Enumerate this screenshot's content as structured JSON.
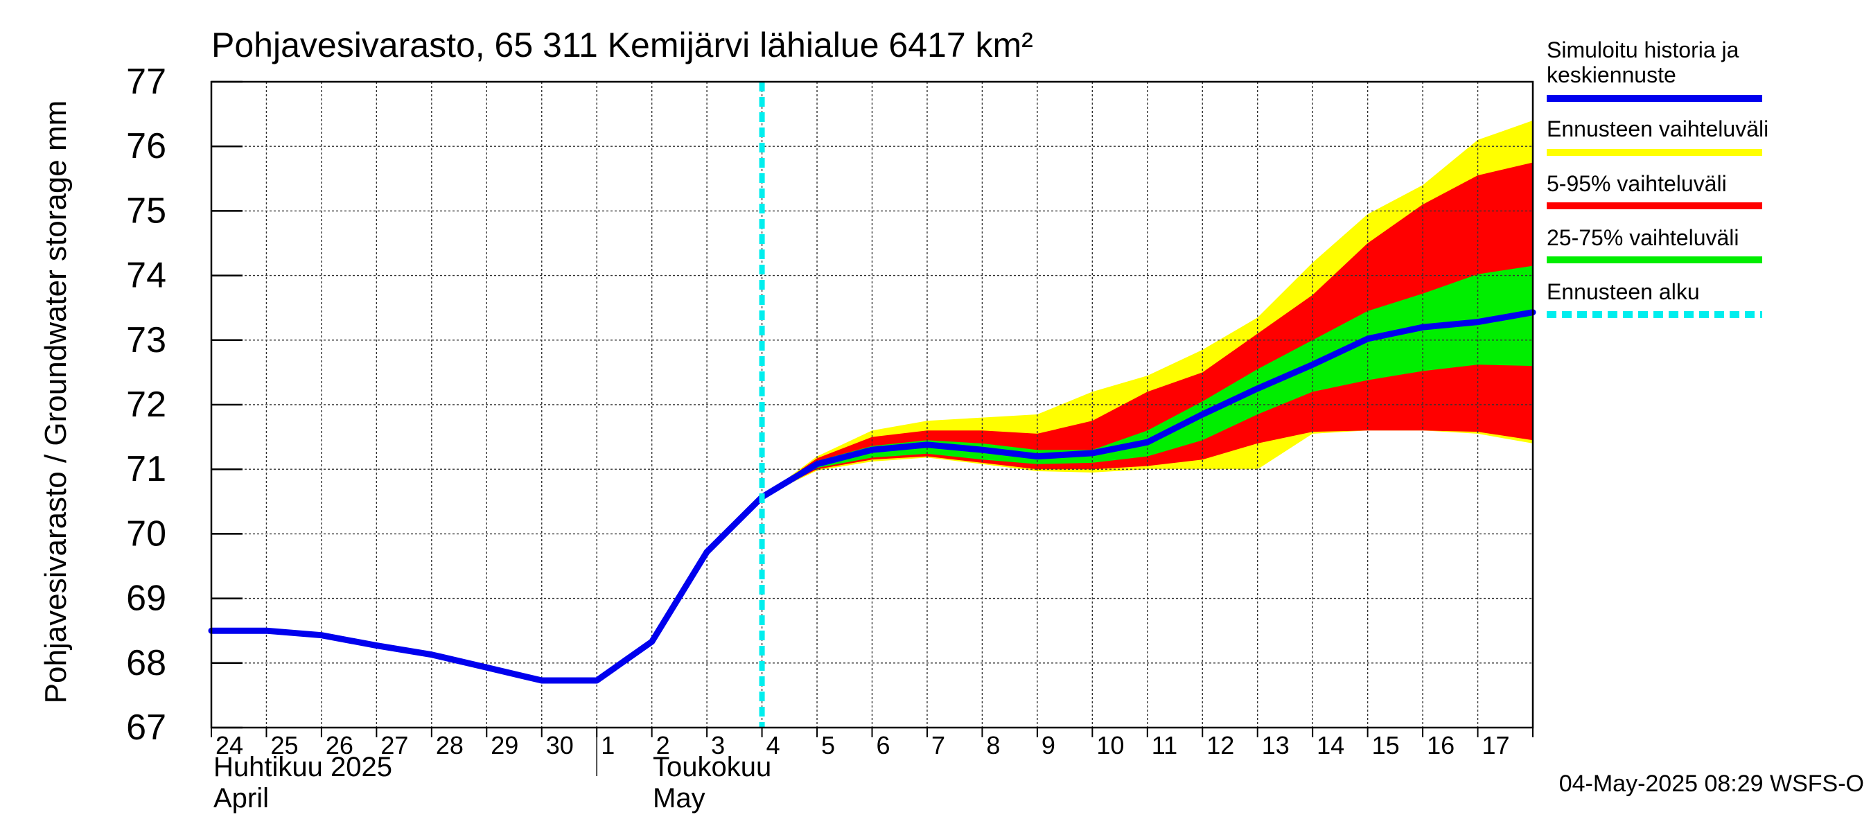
{
  "chart_data": {
    "type": "area",
    "title": "Pohjavesivarasto, 65 311 Kemijärvi lähialue 6417 km²",
    "ylabel": "Pohjavesivarasto / Groundwater storage   mm",
    "ylim": [
      67,
      77
    ],
    "yticks": [
      "67",
      "68",
      "69",
      "70",
      "71",
      "72",
      "73",
      "74",
      "75",
      "76",
      "77"
    ],
    "xlim": [
      0,
      24
    ],
    "xtick_labels": [
      "24",
      "25",
      "26",
      "27",
      "28",
      "29",
      "30",
      "1",
      "2",
      "3",
      "4",
      "5",
      "6",
      "7",
      "8",
      "9",
      "10",
      "11",
      "12",
      "13",
      "14",
      "15",
      "16",
      "17"
    ],
    "month_labels": [
      {
        "fi": "Huhtikuu  2025",
        "en": "April"
      },
      {
        "fi": "Toukokuu",
        "en": "May"
      }
    ],
    "grid": true,
    "footer": "04-May-2025 08:29 WSFS-O",
    "forecast_start_x": 10,
    "legend": {
      "placement": "right",
      "entries": [
        {
          "label_lines": [
            "Simuloitu historia ja",
            "keskiennuste"
          ],
          "color": "#0000ee",
          "style": "solid"
        },
        {
          "label_lines": [
            "Ennusteen vaihteluväli"
          ],
          "color": "#ffff00",
          "style": "solid"
        },
        {
          "label_lines": [
            "5-95% vaihteluväli"
          ],
          "color": "#ff0000",
          "style": "solid"
        },
        {
          "label_lines": [
            "25-75% vaihteluväli"
          ],
          "color": "#00ee00",
          "style": "solid"
        },
        {
          "label_lines": [
            "Ennusteen alku"
          ],
          "color": "#00eeee",
          "style": "dashed"
        }
      ]
    },
    "band_x": [
      10,
      11,
      12,
      13,
      14,
      15,
      16,
      17,
      18,
      19,
      20,
      21,
      22,
      23,
      24
    ],
    "bands": [
      {
        "name": "Ennusteen vaihteluväli",
        "color": "#ffff00",
        "lower": [
          70.57,
          70.98,
          71.12,
          71.18,
          71.08,
          70.97,
          70.95,
          71.0,
          71.0,
          71.0,
          71.55,
          71.6,
          71.6,
          71.55,
          71.4
        ],
        "upper": [
          70.57,
          71.2,
          71.6,
          71.75,
          71.8,
          71.85,
          72.2,
          72.45,
          72.85,
          73.35,
          74.2,
          74.95,
          75.4,
          76.1,
          76.4
        ]
      },
      {
        "name": "5-95% vaihteluväli",
        "color": "#ff0000",
        "lower": [
          70.57,
          71.0,
          71.15,
          71.2,
          71.1,
          71.0,
          71.0,
          71.05,
          71.15,
          71.4,
          71.58,
          71.6,
          71.6,
          71.58,
          71.45
        ],
        "upper": [
          70.57,
          71.17,
          71.5,
          71.6,
          71.6,
          71.55,
          71.75,
          72.2,
          72.5,
          73.1,
          73.7,
          74.5,
          75.1,
          75.55,
          75.75
        ]
      },
      {
        "name": "25-75% vaihteluväli",
        "color": "#00ee00",
        "lower": [
          70.57,
          71.02,
          71.18,
          71.24,
          71.15,
          71.08,
          71.1,
          71.2,
          71.45,
          71.85,
          72.2,
          72.38,
          72.52,
          72.62,
          72.6
        ]
      },
      {
        "name": "25-75% vaihteluväli",
        "color": "#00ee00",
        "upper": [
          70.57,
          71.13,
          71.36,
          71.45,
          71.4,
          71.3,
          71.3,
          71.6,
          72.05,
          72.55,
          73.0,
          73.45,
          73.72,
          74.02,
          74.15
        ]
      }
    ],
    "series": [
      {
        "name": "Simuloitu historia ja keskiennuste",
        "color": "#0000ee",
        "x": [
          0,
          1,
          2,
          3,
          4,
          5,
          6,
          7,
          8,
          9,
          10,
          11,
          12,
          13,
          14,
          15,
          16,
          17,
          18,
          19,
          20,
          21,
          22,
          23,
          24
        ],
        "y": [
          68.5,
          68.5,
          68.43,
          68.27,
          68.13,
          67.93,
          67.73,
          67.73,
          68.33,
          69.72,
          70.57,
          71.08,
          71.3,
          71.38,
          71.3,
          71.2,
          71.25,
          71.42,
          71.85,
          72.25,
          72.62,
          73.02,
          73.2,
          73.28,
          73.43
        ]
      }
    ]
  }
}
